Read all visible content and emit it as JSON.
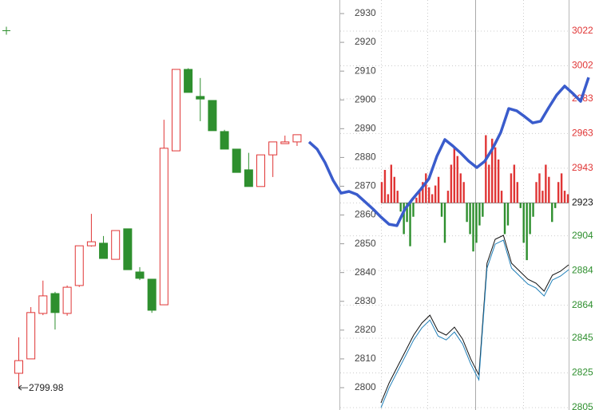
{
  "chart_data": {
    "type": "candlestick",
    "ylim": [
      2800,
      2930
    ],
    "yticks": [
      2800,
      2810,
      2820,
      2830,
      2840,
      2850,
      2860,
      2870,
      2880,
      2890,
      2900,
      2910,
      2920,
      2930
    ],
    "y2lim": [
      2805,
      3022
    ],
    "y2ticks": [
      2805,
      2825,
      2845,
      2864,
      2884,
      2904,
      2923,
      2943,
      2963,
      2983,
      3002,
      3022
    ],
    "baseline": 2923,
    "up_color": "#e03535",
    "down_color": "#2e8f2e",
    "low_annotation": "2799.98",
    "low_annotation_value": 2799.98,
    "candles": [
      {
        "open": 2805.0,
        "high": 2817.5,
        "low": 2799.98,
        "close": 2809.4
      },
      {
        "open": 2810.0,
        "high": 2828.0,
        "low": 2810.0,
        "close": 2826.1
      },
      {
        "open": 2825.8,
        "high": 2837.2,
        "low": 2825.2,
        "close": 2831.9
      },
      {
        "open": 2832.7,
        "high": 2833.3,
        "low": 2820.2,
        "close": 2826.1
      },
      {
        "open": 2825.8,
        "high": 2835.5,
        "low": 2825.0,
        "close": 2834.9
      },
      {
        "open": 2835.5,
        "high": 2849.3,
        "low": 2835.0,
        "close": 2849.3
      },
      {
        "open": 2849.3,
        "high": 2860.4,
        "low": 2849.0,
        "close": 2850.7
      },
      {
        "open": 2850.2,
        "high": 2852.7,
        "low": 2844.9,
        "close": 2844.9
      },
      {
        "open": 2844.6,
        "high": 2854.6,
        "low": 2844.6,
        "close": 2854.6
      },
      {
        "open": 2855.2,
        "high": 2855.2,
        "low": 2841.0,
        "close": 2841.0
      },
      {
        "open": 2840.2,
        "high": 2841.9,
        "low": 2837.4,
        "close": 2838.0
      },
      {
        "open": 2837.7,
        "high": 2837.7,
        "low": 2826.0,
        "close": 2826.9
      },
      {
        "open": 2828.8,
        "high": 2893.1,
        "low": 2828.8,
        "close": 2883.2
      },
      {
        "open": 2882.3,
        "high": 2910.6,
        "low": 2882.3,
        "close": 2910.6
      },
      {
        "open": 2910.6,
        "high": 2911.0,
        "low": 2902.6,
        "close": 2902.6
      },
      {
        "open": 2901.2,
        "high": 2907.6,
        "low": 2892.6,
        "close": 2900.3
      },
      {
        "open": 2899.8,
        "high": 2899.8,
        "low": 2889.3,
        "close": 2889.3
      },
      {
        "open": 2889.0,
        "high": 2889.6,
        "low": 2882.9,
        "close": 2882.9
      },
      {
        "open": 2882.9,
        "high": 2882.9,
        "low": 2874.8,
        "close": 2874.8
      },
      {
        "open": 2875.7,
        "high": 2881.6,
        "low": 2869.9,
        "close": 2869.9
      },
      {
        "open": 2869.9,
        "high": 2880.9,
        "low": 2869.9,
        "close": 2880.9
      },
      {
        "open": 2880.9,
        "high": 2885.4,
        "low": 2873.2,
        "close": 2885.4
      },
      {
        "open": 2884.8,
        "high": 2887.6,
        "low": 2884.8,
        "close": 2885.4
      },
      {
        "open": 2885.4,
        "high": 2887.9,
        "low": 2884.0,
        "close": 2887.9
      }
    ],
    "trend_line": {
      "color": "#3a5ccc",
      "values": [
        2885.4,
        2882.9,
        2878.2,
        2872.1,
        2867.6,
        2868.2,
        2867.1,
        2864.6,
        2862.1,
        2859.3,
        2856.8,
        2856.3,
        2862.1,
        2865.7,
        2869.0,
        2872.6,
        2880.4,
        2886.2,
        2884.0,
        2881.5,
        2878.7,
        2876.5,
        2878.7,
        2883.2,
        2888.7,
        2897.0,
        2896.2,
        2894.2,
        2892.0,
        2892.6,
        2897.3,
        2901.7,
        2904.8,
        2902.3,
        2899.5,
        2907.8
      ]
    },
    "bars": [
      2935,
      2942,
      2928,
      2945,
      2938,
      2930,
      2918,
      2905,
      2912,
      2898,
      2915,
      2926,
      2930,
      2935,
      2940,
      2932,
      2928,
      2933,
      2938,
      2915,
      2900,
      2930,
      2945,
      2955,
      2950,
      2940,
      2935,
      2912,
      2905,
      2895,
      2900,
      2910,
      2915,
      2962,
      2945,
      2960,
      2955,
      2948,
      2930,
      2905,
      2910,
      2940,
      2945,
      2935,
      2920,
      2900,
      2890,
      2905,
      2915,
      2935,
      2940,
      2930,
      2945,
      2938,
      2912,
      2920,
      2935,
      2940,
      2930,
      2928
    ],
    "series": [
      {
        "color": "#111111",
        "values": [
          2807.7,
          2819.2,
          2828.4,
          2837.6,
          2846.8,
          2853.7,
          2858.3,
          2849.1,
          2846.8,
          2851.4,
          2844.5,
          2833.0,
          2823.8,
          2888.2,
          2902.0,
          2904.3,
          2888.2,
          2883.6,
          2879.0,
          2876.7,
          2872.1,
          2881.3,
          2883.6,
          2887.3
        ]
      },
      {
        "color": "#1f7fb8",
        "values": [
          2804.9,
          2816.4,
          2825.6,
          2834.8,
          2844.0,
          2850.9,
          2855.5,
          2846.3,
          2844.0,
          2848.6,
          2841.7,
          2830.2,
          2821.0,
          2885.4,
          2899.2,
          2901.5,
          2885.4,
          2880.8,
          2876.2,
          2873.9,
          2869.3,
          2878.5,
          2880.8,
          2884.5
        ]
      }
    ]
  }
}
